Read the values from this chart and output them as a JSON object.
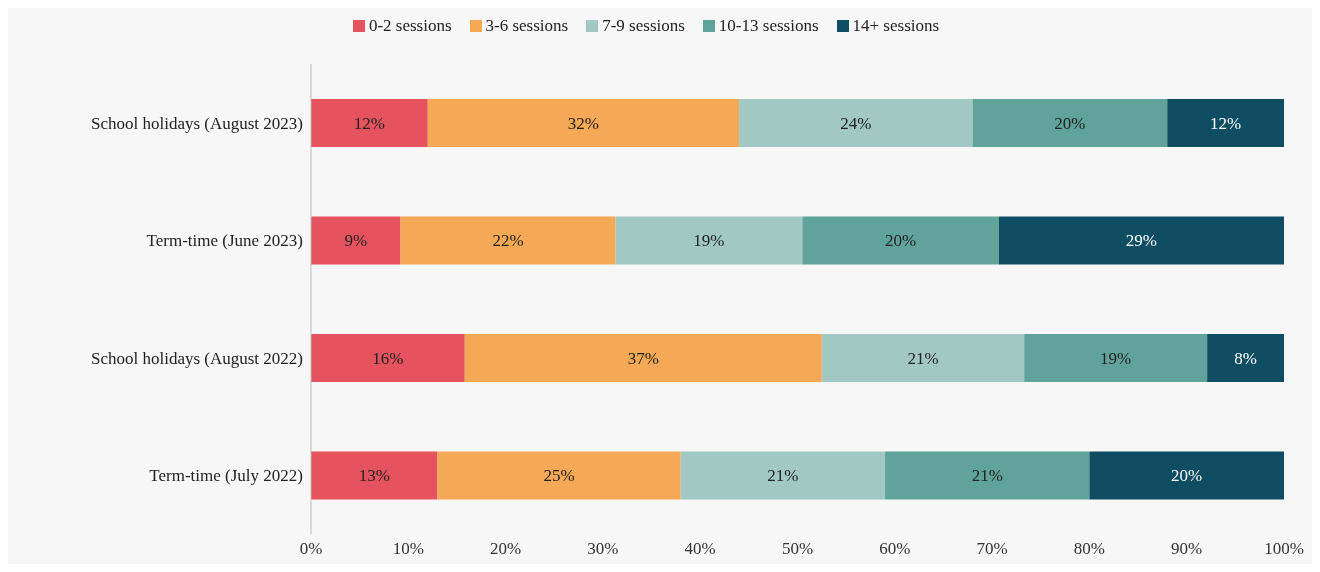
{
  "chart_data": {
    "type": "bar",
    "orientation": "horizontal",
    "stacked": true,
    "legend": "top",
    "grid": false,
    "categories": [
      "School holidays (August 2023)",
      "Term-time (June 2023)",
      "School holidays (August 2022)",
      "Term-time (July 2022)"
    ],
    "series": [
      {
        "name": "0-2 sessions",
        "color": "#e5535e",
        "values": [
          12,
          9.2,
          15.8,
          13
        ],
        "value_labels": [
          "12%",
          "9%",
          "16%",
          "13%"
        ]
      },
      {
        "name": "3-6 sessions",
        "color": "#f5a855",
        "values": [
          32,
          22.1,
          36.7,
          25
        ],
        "value_labels": [
          "32%",
          "22%",
          "37%",
          "25%"
        ]
      },
      {
        "name": "7-9 sessions",
        "color": "#a1c8c3",
        "values": [
          24,
          19.2,
          20.8,
          21
        ],
        "value_labels": [
          "24%",
          "19%",
          "21%",
          "21%"
        ]
      },
      {
        "name": "10-13 sessions",
        "color": "#5fa39a",
        "values": [
          20,
          20.2,
          18.8,
          21
        ],
        "value_labels": [
          "20%",
          "20%",
          "19%",
          "21%"
        ]
      },
      {
        "name": "14+ sessions",
        "color": "#0f4d63",
        "values": [
          12,
          29.3,
          7.9,
          20
        ],
        "value_labels": [
          "12%",
          "29%",
          "8%",
          "20%"
        ]
      }
    ],
    "xlim": [
      0,
      100
    ],
    "xticks": [
      {
        "value": 0,
        "label": "0%"
      },
      {
        "value": 10,
        "label": "10%"
      },
      {
        "value": 20,
        "label": "20%"
      },
      {
        "value": 30,
        "label": "30%"
      },
      {
        "value": 40,
        "label": "40%"
      },
      {
        "value": 50,
        "label": "50%"
      },
      {
        "value": 60,
        "label": "60%"
      },
      {
        "value": 70,
        "label": "70%"
      },
      {
        "value": 80,
        "label": "80%"
      },
      {
        "value": 90,
        "label": "90%"
      },
      {
        "value": 100,
        "label": "100%"
      }
    ]
  }
}
